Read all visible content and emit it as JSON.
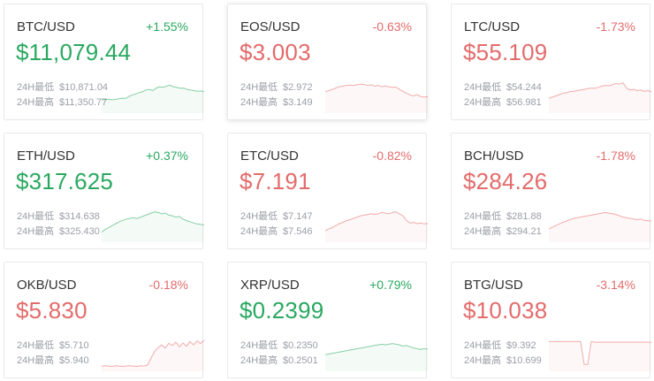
{
  "colors": {
    "up": "#2aa860",
    "down": "#e36b6b"
  },
  "labels": {
    "low": "24H最低",
    "high": "24H最高"
  },
  "tickers": [
    {
      "pair": "BTC/USD",
      "change": "+1.55%",
      "price": "$11,079.44",
      "low": "$10,871.04",
      "high": "$11,350.77",
      "dir": "up",
      "spark": [
        0.3,
        0.3,
        0.32,
        0.3,
        0.31,
        0.33,
        0.35,
        0.34,
        0.4,
        0.45,
        0.48,
        0.52,
        0.55,
        0.6,
        0.62,
        0.58,
        0.66,
        0.7,
        0.68,
        0.72,
        0.75,
        0.7,
        0.68,
        0.65,
        0.66,
        0.62,
        0.6,
        0.58,
        0.56,
        0.57,
        0.55
      ]
    },
    {
      "pair": "EOS/USD",
      "change": "-0.63%",
      "price": "$3.003",
      "low": "$2.972",
      "high": "$3.149",
      "dir": "down",
      "spark": [
        0.55,
        0.58,
        0.62,
        0.66,
        0.7,
        0.72,
        0.74,
        0.75,
        0.74,
        0.76,
        0.78,
        0.77,
        0.74,
        0.76,
        0.72,
        0.74,
        0.7,
        0.72,
        0.7,
        0.68,
        0.69,
        0.62,
        0.56,
        0.5,
        0.45,
        0.42,
        0.46,
        0.4,
        0.38,
        0.4
      ]
    },
    {
      "pair": "LTC/USD",
      "change": "-1.73%",
      "price": "$55.109",
      "low": "$54.244",
      "high": "$56.981",
      "dir": "down",
      "spark": [
        0.35,
        0.38,
        0.42,
        0.46,
        0.5,
        0.52,
        0.55,
        0.56,
        0.58,
        0.6,
        0.62,
        0.64,
        0.66,
        0.65,
        0.68,
        0.72,
        0.74,
        0.73,
        0.76,
        0.8,
        0.78,
        0.82,
        0.66,
        0.6,
        0.62,
        0.58,
        0.6,
        0.56,
        0.58,
        0.55
      ]
    },
    {
      "pair": "ETH/USD",
      "change": "+0.37%",
      "price": "$317.625",
      "low": "$314.638",
      "high": "$325.430",
      "dir": "up",
      "spark": [
        0.2,
        0.28,
        0.34,
        0.4,
        0.46,
        0.52,
        0.56,
        0.6,
        0.62,
        0.64,
        0.62,
        0.66,
        0.7,
        0.74,
        0.78,
        0.82,
        0.8,
        0.76,
        0.78,
        0.72,
        0.7,
        0.66,
        0.68,
        0.6,
        0.55,
        0.52,
        0.48,
        0.45,
        0.44,
        0.42
      ]
    },
    {
      "pair": "ETC/USD",
      "change": "-0.82%",
      "price": "$7.191",
      "low": "$7.147",
      "high": "$7.546",
      "dir": "down",
      "spark": [
        0.25,
        0.3,
        0.34,
        0.4,
        0.46,
        0.5,
        0.55,
        0.58,
        0.62,
        0.66,
        0.7,
        0.72,
        0.74,
        0.76,
        0.74,
        0.76,
        0.8,
        0.78,
        0.76,
        0.8,
        0.82,
        0.76,
        0.7,
        0.55,
        0.48,
        0.5,
        0.46,
        0.48,
        0.45,
        0.47
      ]
    },
    {
      "pair": "BCH/USD",
      "change": "-1.78%",
      "price": "$284.26",
      "low": "$281.88",
      "high": "$294.21",
      "dir": "down",
      "spark": [
        0.3,
        0.35,
        0.4,
        0.45,
        0.5,
        0.54,
        0.58,
        0.62,
        0.64,
        0.66,
        0.68,
        0.7,
        0.72,
        0.74,
        0.76,
        0.78,
        0.8,
        0.78,
        0.76,
        0.74,
        0.7,
        0.66,
        0.64,
        0.62,
        0.6,
        0.58,
        0.6,
        0.56,
        0.55,
        0.54
      ]
    },
    {
      "pair": "OKB/USD",
      "change": "-0.18%",
      "price": "$5.830",
      "low": "$5.710",
      "high": "$5.940",
      "dir": "down",
      "spark": [
        0.05,
        0.06,
        0.05,
        0.04,
        0.06,
        0.05,
        0.04,
        0.05,
        0.06,
        0.05,
        0.04,
        0.06,
        0.05,
        0.08,
        0.3,
        0.5,
        0.62,
        0.7,
        0.6,
        0.75,
        0.68,
        0.78,
        0.64,
        0.76,
        0.66,
        0.8,
        0.7,
        0.82,
        0.74,
        0.84
      ]
    },
    {
      "pair": "XRP/USD",
      "change": "+0.79%",
      "price": "$0.2399",
      "low": "$0.2350",
      "high": "$0.2501",
      "dir": "up",
      "spark": [
        0.4,
        0.42,
        0.44,
        0.46,
        0.48,
        0.5,
        0.52,
        0.54,
        0.56,
        0.58,
        0.6,
        0.62,
        0.64,
        0.66,
        0.68,
        0.7,
        0.72,
        0.7,
        0.72,
        0.74,
        0.72,
        0.7,
        0.66,
        0.68,
        0.64,
        0.6,
        0.58,
        0.56,
        0.58,
        0.57
      ]
    },
    {
      "pair": "BTG/USD",
      "change": "-3.14%",
      "price": "$10.038",
      "low": "$9.392",
      "high": "$10.699",
      "dir": "down",
      "spark": [
        0.8,
        0.8,
        0.8,
        0.8,
        0.8,
        0.8,
        0.8,
        0.8,
        0.8,
        0.8,
        0.1,
        0.1,
        0.8,
        0.78,
        0.78,
        0.78,
        0.78,
        0.78,
        0.78,
        0.78,
        0.78,
        0.78,
        0.78,
        0.78,
        0.78,
        0.78,
        0.78,
        0.78,
        0.78,
        0.78
      ]
    }
  ]
}
